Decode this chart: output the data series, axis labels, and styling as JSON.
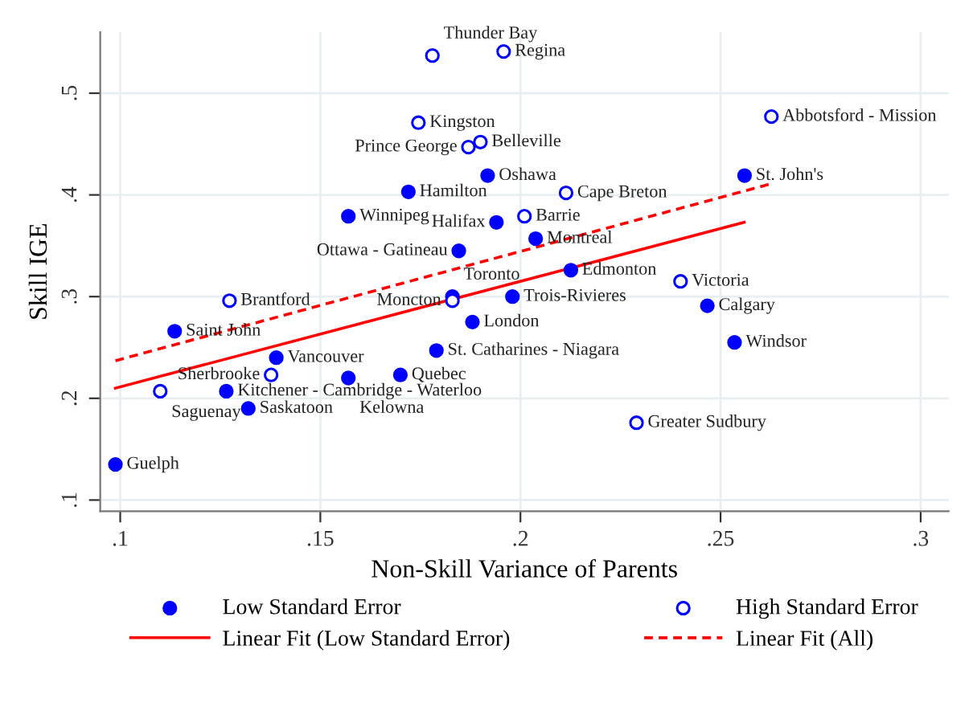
{
  "chart_data": {
    "type": "scatter",
    "xlabel": "Non-Skill Variance of Parents",
    "ylabel": "Skill IGE",
    "xlim": [
      0.095,
      0.307
    ],
    "ylim": [
      0.089,
      0.56
    ],
    "xticks": [
      {
        "value": 0.1,
        "label": ".1"
      },
      {
        "value": 0.15,
        "label": ".15"
      },
      {
        "value": 0.2,
        "label": ".2"
      },
      {
        "value": 0.25,
        "label": ".25"
      },
      {
        "value": 0.3,
        "label": ".3"
      }
    ],
    "yticks": [
      {
        "value": 0.1,
        "label": ".1"
      },
      {
        "value": 0.2,
        "label": ".2"
      },
      {
        "value": 0.3,
        "label": ".3"
      },
      {
        "value": 0.4,
        "label": ".4"
      },
      {
        "value": 0.5,
        "label": ".5"
      }
    ],
    "grid": true,
    "legend": "bottom",
    "series": [
      {
        "name": "Low Standard Error",
        "type": "scatter",
        "marker": "circle",
        "color": "#0000ff",
        "x": [
          0.0988,
          0.1136,
          0.1265,
          0.132,
          0.139,
          0.157,
          0.17,
          0.179,
          0.183,
          0.198,
          0.188,
          0.2126,
          0.2467,
          0.2535,
          0.2038,
          0.194,
          0.1846,
          0.157,
          0.172,
          0.1918,
          0.256
        ],
        "values": [
          0.135,
          0.266,
          0.207,
          0.19,
          0.24,
          0.22,
          0.223,
          0.247,
          0.3,
          0.3,
          0.275,
          0.326,
          0.291,
          0.255,
          0.357,
          0.373,
          0.345,
          0.379,
          0.403,
          0.419,
          0.419
        ],
        "value_labels": [
          "Guelph",
          "Saint John",
          "Kitchener - Cambridge - Waterloo",
          "Saskatoon",
          "Vancouver",
          "Kelowna",
          "Quebec",
          "St. Catharines - Niagara",
          "Toronto",
          "Trois-Rivieres",
          "London",
          "Edmonton",
          "Calgary",
          "Windsor",
          "Montreal",
          "Halifax",
          "Ottawa - Gatineau",
          "Winnipeg",
          "Hamilton",
          "Oshawa",
          "St. John's"
        ]
      },
      {
        "name": "High Standard Error",
        "type": "scatter",
        "marker": "open circle",
        "color": "#0000ff",
        "x": [
          0.178,
          0.1958,
          0.1745,
          0.19,
          0.187,
          0.2114,
          0.201,
          0.2627,
          0.24,
          0.1273,
          0.183,
          0.1377,
          0.11,
          0.229
        ],
        "values": [
          0.537,
          0.541,
          0.471,
          0.452,
          0.447,
          0.402,
          0.379,
          0.477,
          0.315,
          0.296,
          0.296,
          0.223,
          0.207,
          0.176
        ],
        "value_labels": [
          "Thunder Bay",
          "Regina",
          "Kingston",
          "Belleville",
          "Prince George",
          "Cape Breton",
          "Barrie",
          "Abbotsford - Mission",
          "Victoria",
          "Brantford",
          "Moncton",
          "Sherbrooke",
          "Saguenay",
          "Greater Sudbury"
        ]
      },
      {
        "name": "Linear Fit (Low Standard Error)",
        "type": "line",
        "line_style": "solid",
        "color": "#ff0000",
        "x": [
          0.0988,
          0.2559
        ],
        "values": [
          0.21,
          0.373
        ]
      },
      {
        "name": "Linear Fit (All)",
        "type": "line",
        "line_style": "dashed",
        "color": "#ff0000",
        "x": [
          0.0988,
          0.2627
        ],
        "values": [
          0.237,
          0.411
        ]
      }
    ]
  }
}
